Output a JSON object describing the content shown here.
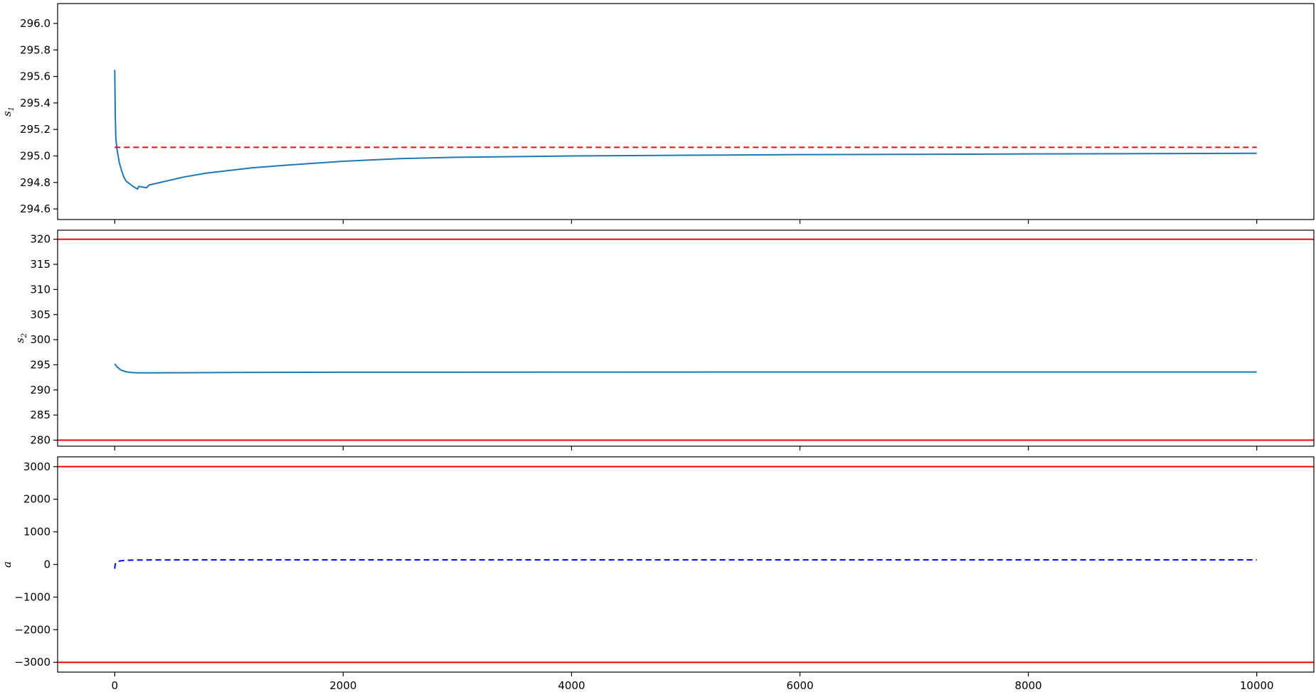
{
  "chart_data": [
    {
      "type": "line",
      "ylabel": "s",
      "ylabel_subscript": "1",
      "xlim": [
        -500,
        10500
      ],
      "ylim": [
        294.52,
        296.15
      ],
      "yticks": [
        294.6,
        294.8,
        295.0,
        295.2,
        295.4,
        295.6,
        295.8,
        296.0
      ],
      "ytick_labels": [
        "294.6",
        "294.8",
        "295.0",
        "295.2",
        "295.4",
        "295.6",
        "295.8",
        "296.0"
      ],
      "xticks": [
        0,
        2000,
        4000,
        6000,
        8000,
        10000
      ],
      "xtick_labels_shown": false,
      "grid": false,
      "series": [
        {
          "style": "solid",
          "color": "#1f77b4",
          "x": [
            0,
            5,
            10,
            20,
            40,
            60,
            80,
            100,
            130,
            160,
            200,
            210,
            280,
            300,
            400,
            500,
            600,
            800,
            1000,
            1200,
            1500,
            2000,
            2500,
            3000,
            4000,
            5000,
            6000,
            7000,
            8000,
            9000,
            10000
          ],
          "y": [
            295.65,
            295.3,
            295.13,
            295.05,
            294.95,
            294.89,
            294.84,
            294.81,
            294.79,
            294.77,
            294.75,
            294.77,
            294.76,
            294.78,
            294.8,
            294.82,
            294.84,
            294.87,
            294.89,
            294.91,
            294.93,
            294.96,
            294.98,
            294.99,
            295.0,
            295.005,
            295.01,
            295.012,
            295.015,
            295.017,
            295.02
          ]
        },
        {
          "style": "dashed",
          "color": "#ff0000",
          "x": [
            0,
            10000
          ],
          "y": [
            295.065,
            295.065
          ]
        }
      ]
    },
    {
      "type": "line",
      "ylabel": "s",
      "ylabel_subscript": "2",
      "xlim": [
        -500,
        10500
      ],
      "ylim": [
        278.8,
        321.8
      ],
      "yticks": [
        280,
        285,
        290,
        295,
        300,
        305,
        310,
        315,
        320
      ],
      "ytick_labels": [
        "280",
        "285",
        "290",
        "295",
        "300",
        "305",
        "310",
        "315",
        "320"
      ],
      "xticks": [
        0,
        2000,
        4000,
        6000,
        8000,
        10000
      ],
      "xtick_labels_shown": false,
      "grid": false,
      "hlines": [
        {
          "y": 320,
          "color": "#ff0000",
          "style": "solid"
        },
        {
          "y": 280,
          "color": "#ff0000",
          "style": "solid"
        }
      ],
      "series": [
        {
          "style": "solid",
          "color": "#1f77b4",
          "x": [
            0,
            20,
            50,
            100,
            150,
            200,
            300,
            500,
            1000,
            2000,
            4000,
            6000,
            8000,
            10000
          ],
          "y": [
            295.2,
            294.6,
            294.0,
            293.6,
            293.45,
            293.4,
            293.4,
            293.42,
            293.48,
            293.52,
            293.55,
            293.56,
            293.57,
            293.57
          ]
        }
      ]
    },
    {
      "type": "line",
      "ylabel": "a",
      "xlim": [
        -500,
        10500
      ],
      "ylim": [
        -3300,
        3300
      ],
      "yticks": [
        -3000,
        -2000,
        -1000,
        0,
        1000,
        2000,
        3000
      ],
      "ytick_labels": [
        "−3000",
        "−2000",
        "−1000",
        "0",
        "1000",
        "2000",
        "3000"
      ],
      "xticks": [
        0,
        2000,
        4000,
        6000,
        8000,
        10000
      ],
      "xtick_labels": [
        "0",
        "2000",
        "4000",
        "6000",
        "8000",
        "10000"
      ],
      "grid": false,
      "hlines": [
        {
          "y": 3000,
          "color": "#ff0000",
          "style": "solid"
        },
        {
          "y": -3000,
          "color": "#ff0000",
          "style": "solid"
        }
      ],
      "series": [
        {
          "style": "dashed",
          "color": "#0000ff",
          "x": [
            0,
            3,
            6,
            10,
            20,
            30,
            50,
            80,
            120,
            200,
            300,
            500,
            1000,
            3000,
            6000,
            10000
          ],
          "y": [
            -130,
            -30,
            20,
            50,
            80,
            95,
            110,
            122,
            130,
            135,
            138,
            140,
            142,
            143,
            143,
            143
          ]
        }
      ]
    }
  ]
}
